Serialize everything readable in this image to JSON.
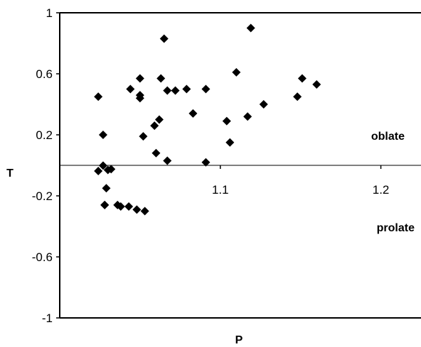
{
  "chart_data": {
    "type": "scatter",
    "title": "",
    "xlabel": "P",
    "ylabel": "T",
    "xlim": [
      1.0,
      1.225
    ],
    "ylim": [
      -1,
      1
    ],
    "yticks": [
      "-1",
      "-0.6",
      "-0.2",
      "0.2",
      "0.6",
      "1"
    ],
    "xticks": [
      "1.1",
      "1.2"
    ],
    "annotations": [
      "oblate",
      "prolate"
    ],
    "grid": false,
    "legend": "none",
    "marker": "diamond",
    "marker_color": "#000000",
    "series": [
      {
        "x": [
          1.024,
          1.027,
          1.029,
          1.027,
          1.024,
          1.028,
          1.028,
          1.03,
          1.032,
          1.044,
          1.05,
          1.05,
          1.05,
          1.052,
          1.059,
          1.062,
          1.06,
          1.063,
          1.065,
          1.067,
          1.067,
          1.072,
          1.079,
          1.083,
          1.091,
          1.091,
          1.104,
          1.106,
          1.11,
          1.117,
          1.119,
          1.127,
          1.148,
          1.151,
          1.16,
          1.036,
          1.038,
          1.048,
          1.053,
          1.043
        ],
        "y": [
          -0.037,
          -0.002,
          -0.15,
          0.2,
          0.45,
          -0.26,
          -0.26,
          -0.03,
          -0.025,
          0.5,
          0.57,
          0.46,
          0.44,
          0.19,
          0.26,
          0.3,
          0.08,
          0.57,
          0.83,
          0.03,
          0.49,
          0.49,
          0.5,
          0.34,
          0.5,
          0.02,
          0.29,
          0.15,
          0.61,
          0.32,
          0.9,
          0.4,
          0.45,
          0.57,
          0.53,
          -0.26,
          -0.27,
          -0.29,
          -0.3,
          -0.27
        ]
      }
    ]
  }
}
